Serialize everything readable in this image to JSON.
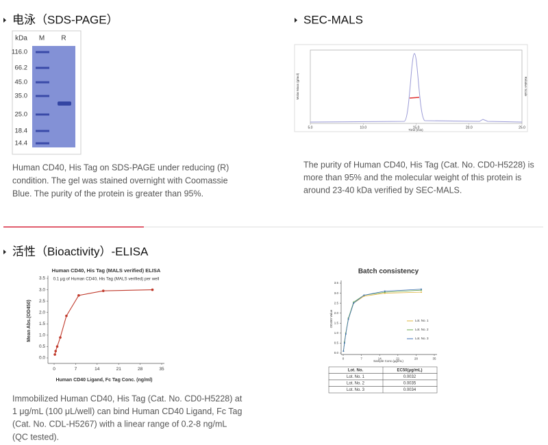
{
  "sds_page": {
    "heading": "电泳（SDS-PAGE）",
    "gel_header": [
      "kDa",
      "M",
      "R"
    ],
    "markers": [
      "116.0",
      "66.2",
      "45.0",
      "35.0",
      "25.0",
      "18.4",
      "14.4"
    ],
    "caption": [
      "Human CD40, His Tag on SDS-PAGE under reducing (R)",
      "condition. The gel was stained overnight with Coomassie",
      "Blue. The purity of the protein is greater than 95%."
    ]
  },
  "sec_mals": {
    "heading": "SEC-MALS",
    "x_label": "Time (min)",
    "y_label": "Molar Mass (g/mol)",
    "y2_label": "Relative Scale",
    "xlim": [
      5,
      25
    ],
    "xticks": [
      {
        "value": 5,
        "label": "5.0"
      },
      {
        "value": 10,
        "label": "10.0"
      },
      {
        "value": 15,
        "label": "15.0"
      },
      {
        "value": 20,
        "label": "20.0"
      },
      {
        "value": 25,
        "label": "25.0"
      }
    ],
    "caption": [
      "The purity of Human CD40, His Tag (Cat. No. CD0-H5228) is",
      "more than 95% and the molecular weight of this protein is",
      "around 23-40 kDa verified by SEC-MALS."
    ]
  },
  "elisa": {
    "heading": "活性（Bioactivity）-ELISA",
    "chart": {
      "type": "line",
      "title": "Human CD40, His Tag (MALS verified) ELISA",
      "subtitle": "0.1 μg of Human CD40, His Tag (MALS verified) per well",
      "x_label": "Human CD40 Ligand, Fc Tag Conc. (ng/ml)",
      "y_label": "Mean Abs.(OD450)",
      "x": [
        0.25,
        0.5,
        1,
        2,
        4,
        8,
        16,
        32
      ],
      "values": [
        0.15,
        0.3,
        0.5,
        0.9,
        1.85,
        2.75,
        2.95,
        3.0
      ],
      "color": "#c0392b",
      "xlim": [
        0,
        35
      ],
      "ylim": [
        0,
        3.5
      ],
      "xticks": [
        0,
        7,
        14,
        21,
        28,
        35
      ],
      "yticks": [
        {
          "value": 0,
          "label": "0.0"
        },
        0.5,
        {
          "value": 1,
          "label": "1.0"
        },
        1.5,
        {
          "value": 2,
          "label": "2.0"
        },
        2.5,
        {
          "value": 3,
          "label": "3.0"
        },
        3.5
      ]
    },
    "caption": [
      "Immobilized Human CD40, His Tag (Cat. No. CD0-H5228) at",
      "1 μg/mL (100 μL/well) can bind Human CD40 Ligand, Fc Tag",
      "(Cat. No. CDL-H5267) with a linear range of 0.2-8 ng/mL",
      "(QC tested)."
    ]
  },
  "batch": {
    "chart": {
      "type": "line",
      "title": "Batch consistency",
      "x_label": "Sample Conc.(μg/mL)",
      "y_label": "OD450 Value",
      "x": [
        0.1,
        0.5,
        1,
        2,
        4,
        8,
        16,
        30
      ],
      "series": [
        {
          "name": "Lot. No. 1",
          "color": "#e0b43c",
          "values": [
            0.1,
            0.55,
            1.0,
            1.7,
            2.5,
            2.85,
            3.0,
            3.05
          ]
        },
        {
          "name": "Lot. No. 2",
          "color": "#6aa84f",
          "values": [
            0.1,
            0.55,
            1.0,
            1.75,
            2.55,
            2.9,
            3.05,
            3.15
          ]
        },
        {
          "name": "Lot. No. 3",
          "color": "#3d6fb6",
          "values": [
            0.1,
            0.5,
            0.95,
            1.7,
            2.5,
            2.9,
            3.1,
            3.2
          ]
        }
      ],
      "xlim": [
        0,
        35
      ],
      "ylim": [
        0,
        3.5
      ],
      "xticks": [
        0,
        7,
        14,
        21,
        28,
        35
      ],
      "yticks": [
        {
          "value": 0,
          "label": "0.0"
        },
        0.5,
        {
          "value": 1,
          "label": "1.0"
        },
        1.5,
        {
          "value": 2,
          "label": "2.0"
        },
        2.5,
        {
          "value": 3,
          "label": "3.0"
        },
        3.5
      ]
    },
    "table": {
      "header": [
        "Lot. No.",
        "EC50(μg/mL)"
      ],
      "rows": [
        [
          "Lot. No. 1",
          "0.0032"
        ],
        [
          "Lot. No. 2",
          "0.0035"
        ],
        [
          "Lot. No. 3",
          "0.0034"
        ]
      ]
    }
  }
}
